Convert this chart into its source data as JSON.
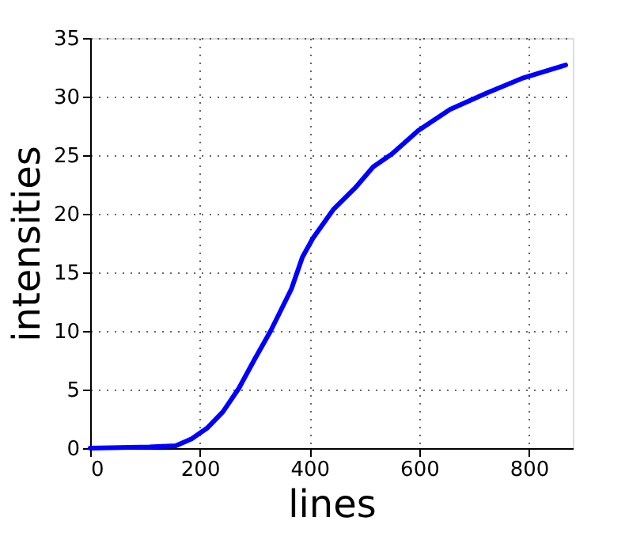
{
  "chart_data": {
    "type": "line",
    "xlabel": "lines",
    "ylabel": "intensities",
    "x": [
      0,
      108,
      156,
      185,
      213,
      242,
      271,
      300,
      329,
      367,
      387,
      406,
      444,
      483,
      516,
      550,
      598,
      656,
      723,
      790,
      867
    ],
    "series": [
      {
        "color": "#0000ff",
        "values": [
          0,
          0.1,
          0.2,
          0.8,
          1.7,
          3.1,
          5.1,
          7.6,
          10.0,
          13.6,
          16.3,
          17.9,
          20.4,
          22.2,
          24.0,
          25.1,
          27.1,
          28.9,
          30.3,
          31.6,
          32.7
        ]
      }
    ],
    "xlim": [
      0,
      880
    ],
    "xticks": [
      0,
      200,
      400,
      600,
      800
    ],
    "ylim": [
      0,
      35
    ],
    "yticks": [
      0,
      5,
      10,
      15,
      20,
      25,
      30,
      35
    ],
    "grid": true,
    "line_style": "solid",
    "marker": "none"
  }
}
